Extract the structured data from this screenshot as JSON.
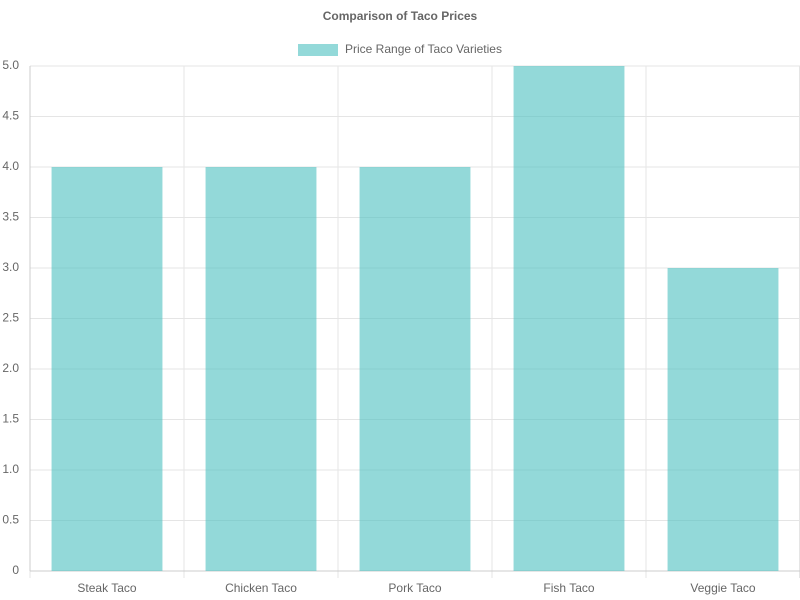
{
  "chart_data": {
    "type": "bar",
    "title": "Comparison of Taco Prices",
    "series": [
      {
        "name": "Price Range of Taco Varieties",
        "color": "rgba(75,192,192,0.6)",
        "values": [
          4,
          4,
          4,
          5,
          3
        ]
      }
    ],
    "categories": [
      "Steak Taco",
      "Chicken Taco",
      "Pork Taco",
      "Fish Taco",
      "Veggie Taco"
    ],
    "ylim": [
      0,
      5
    ],
    "yticks": [
      0,
      0.5,
      {
        "value": 1,
        "label": "1.0"
      },
      1.5,
      {
        "value": 2,
        "label": "2.0"
      },
      2.5,
      {
        "value": 3,
        "label": "3.0"
      },
      3.5,
      {
        "value": 4,
        "label": "4.0"
      },
      4.5,
      {
        "value": 5,
        "label": "5.0"
      }
    ],
    "grid": true,
    "legend": "top"
  }
}
